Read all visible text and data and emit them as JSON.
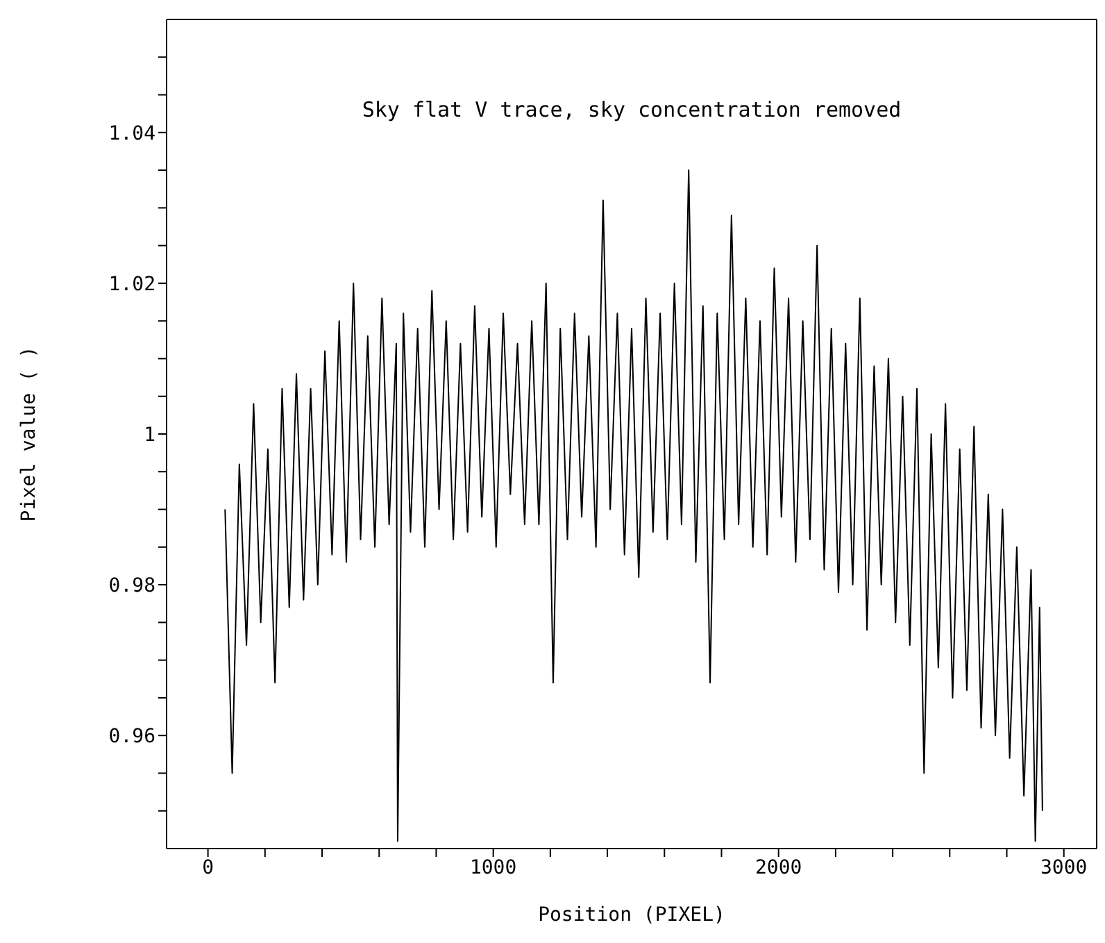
{
  "chart_data": {
    "type": "line",
    "title": "Sky flat V trace, sky concentration removed",
    "xlabel": "Position (PIXEL)",
    "ylabel": "Pixel value ( )",
    "xlim": [
      -145,
      3115
    ],
    "ylim": [
      0.945,
      1.055
    ],
    "xticks": [
      0,
      {
        "value": 200,
        "label": null
      },
      {
        "value": 400,
        "label": null
      },
      {
        "value": 600,
        "label": null
      },
      {
        "value": 800,
        "label": null
      },
      1000,
      {
        "value": 1200,
        "label": null
      },
      {
        "value": 1400,
        "label": null
      },
      {
        "value": 1600,
        "label": null
      },
      {
        "value": 1800,
        "label": null
      },
      2000,
      {
        "value": 2200,
        "label": null
      },
      {
        "value": 2400,
        "label": null
      },
      {
        "value": 2600,
        "label": null
      },
      {
        "value": 2800,
        "label": null
      },
      3000
    ],
    "yticks": [
      {
        "value": 0.95,
        "label": null
      },
      {
        "value": 0.955,
        "label": null
      },
      0.96,
      {
        "value": 0.965,
        "label": null
      },
      {
        "value": 0.97,
        "label": null
      },
      {
        "value": 0.975,
        "label": null
      },
      0.98,
      {
        "value": 0.985,
        "label": null
      },
      {
        "value": 0.99,
        "label": null
      },
      {
        "value": 0.995,
        "label": null
      },
      1,
      {
        "value": 1.005,
        "label": null
      },
      {
        "value": 1.01,
        "label": null
      },
      {
        "value": 1.015,
        "label": null
      },
      1.02,
      {
        "value": 1.025,
        "label": null
      },
      {
        "value": 1.03,
        "label": null
      },
      {
        "value": 1.035,
        "label": null
      },
      1.04,
      {
        "value": 1.045,
        "label": null
      },
      {
        "value": 1.05,
        "label": null
      }
    ],
    "marker": "none",
    "line_style": "solid",
    "series": [
      {
        "color": "#000000",
        "x": [
          60,
          85,
          110,
          135,
          160,
          185,
          210,
          235,
          260,
          285,
          310,
          335,
          360,
          385,
          410,
          435,
          460,
          485,
          510,
          535,
          560,
          585,
          610,
          635,
          660,
          665,
          685,
          710,
          735,
          760,
          785,
          810,
          835,
          860,
          885,
          910,
          935,
          960,
          985,
          1010,
          1035,
          1060,
          1085,
          1110,
          1135,
          1160,
          1185,
          1210,
          1235,
          1260,
          1285,
          1310,
          1335,
          1360,
          1385,
          1410,
          1435,
          1460,
          1485,
          1510,
          1535,
          1560,
          1585,
          1610,
          1635,
          1660,
          1685,
          1710,
          1735,
          1760,
          1785,
          1810,
          1835,
          1860,
          1885,
          1910,
          1935,
          1960,
          1985,
          2010,
          2035,
          2060,
          2085,
          2110,
          2135,
          2160,
          2185,
          2210,
          2235,
          2260,
          2285,
          2310,
          2335,
          2360,
          2385,
          2410,
          2435,
          2460,
          2485,
          2510,
          2535,
          2560,
          2585,
          2610,
          2635,
          2660,
          2685,
          2710,
          2735,
          2760,
          2785,
          2810,
          2835,
          2860,
          2885,
          2900,
          2915,
          2925
        ],
        "values": [
          0.99,
          0.955,
          0.996,
          0.972,
          1.004,
          0.975,
          0.998,
          0.967,
          1.006,
          0.977,
          1.008,
          0.978,
          1.006,
          0.98,
          1.011,
          0.984,
          1.015,
          0.983,
          1.02,
          0.986,
          1.013,
          0.985,
          1.018,
          0.988,
          1.012,
          0.946,
          1.016,
          0.987,
          1.014,
          0.985,
          1.019,
          0.99,
          1.015,
          0.986,
          1.012,
          0.987,
          1.017,
          0.989,
          1.014,
          0.985,
          1.016,
          0.992,
          1.012,
          0.988,
          1.015,
          0.988,
          1.02,
          0.967,
          1.014,
          0.986,
          1.016,
          0.989,
          1.013,
          0.985,
          1.031,
          0.99,
          1.016,
          0.984,
          1.014,
          0.981,
          1.018,
          0.987,
          1.016,
          0.986,
          1.02,
          0.988,
          1.035,
          0.983,
          1.017,
          0.967,
          1.016,
          0.986,
          1.029,
          0.988,
          1.018,
          0.985,
          1.015,
          0.984,
          1.022,
          0.989,
          1.018,
          0.983,
          1.015,
          0.986,
          1.025,
          0.982,
          1.014,
          0.979,
          1.012,
          0.98,
          1.018,
          0.974,
          1.009,
          0.98,
          1.01,
          0.975,
          1.005,
          0.972,
          1.006,
          0.955,
          1.0,
          0.969,
          1.004,
          0.965,
          0.998,
          0.966,
          1.001,
          0.961,
          0.992,
          0.96,
          0.99,
          0.957,
          0.985,
          0.952,
          0.982,
          0.946,
          0.977,
          0.95
        ]
      }
    ]
  }
}
